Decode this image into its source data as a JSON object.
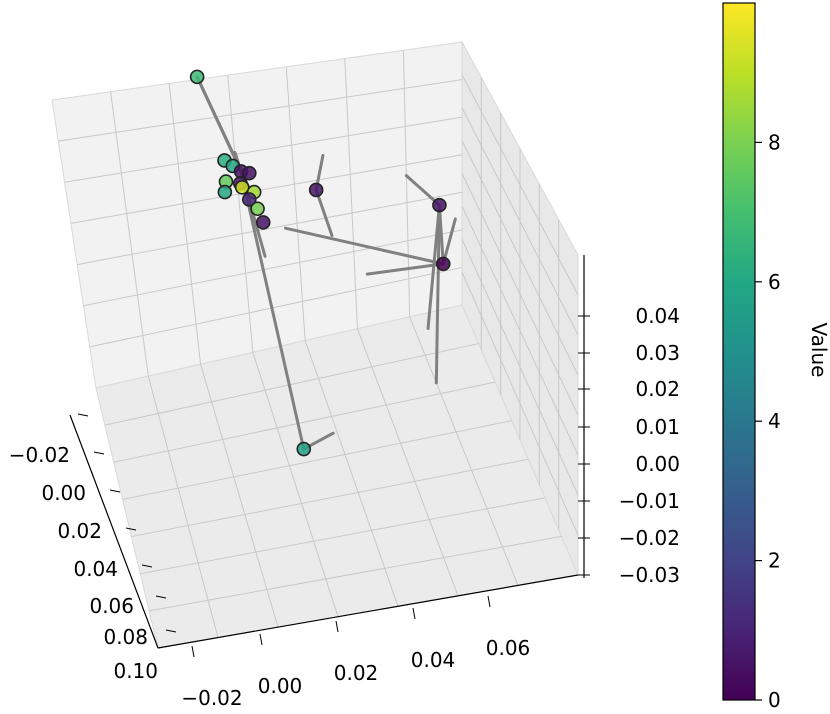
{
  "chart_data": {
    "type": "scatter",
    "projection": "3d",
    "title": "",
    "xlabel": "",
    "ylabel": "",
    "zlabel": "",
    "grid": true,
    "x_ticks": [
      "−0.02",
      "0.00",
      "0.02",
      "0.04",
      "0.06",
      "0.08",
      "0.10"
    ],
    "y_ticks": [
      "−0.02",
      "0.00",
      "0.02",
      "0.04",
      "0.06"
    ],
    "z_ticks": [
      "0.04",
      "0.03",
      "0.02",
      "0.01",
      "0.00",
      "−0.01",
      "−0.02",
      "−0.03"
    ],
    "xlim": [
      -0.03,
      0.1
    ],
    "ylim": [
      -0.03,
      0.08
    ],
    "zlim": [
      -0.035,
      0.05
    ],
    "colorbar": {
      "label": "Value",
      "colormap": "viridis",
      "range": [
        0,
        10
      ],
      "ticks": [
        "0",
        "2",
        "4",
        "6",
        "8"
      ]
    },
    "line_color": "#808080",
    "points": [
      {
        "x": -0.025,
        "y": -0.01,
        "z": 0.048,
        "value": 6.8
      },
      {
        "x": -0.012,
        "y": -0.004,
        "z": 0.03,
        "value": 6.3
      },
      {
        "x": -0.01,
        "y": -0.002,
        "z": 0.029,
        "value": 6.0
      },
      {
        "x": -0.008,
        "y": 0.0,
        "z": 0.028,
        "value": 0.4
      },
      {
        "x": -0.006,
        "y": 0.002,
        "z": 0.028,
        "value": 0.5
      },
      {
        "x": -0.008,
        "y": -0.004,
        "z": 0.026,
        "value": 7.6
      },
      {
        "x": -0.005,
        "y": 0.0,
        "z": 0.025,
        "value": 9.3
      },
      {
        "x": -0.003,
        "y": 0.003,
        "z": 0.024,
        "value": 8.6
      },
      {
        "x": -0.01,
        "y": 0.0,
        "z": 0.024,
        "value": 0.6
      },
      {
        "x": -0.011,
        "y": -0.004,
        "z": 0.022,
        "value": 6.0
      },
      {
        "x": -0.006,
        "y": 0.002,
        "z": 0.021,
        "value": 1.0
      },
      {
        "x": -0.004,
        "y": 0.004,
        "z": 0.019,
        "value": 7.9
      },
      {
        "x": -0.009,
        "y": 0.006,
        "z": 0.013,
        "value": 0.5
      },
      {
        "x": 0.012,
        "y": 0.018,
        "z": 0.028,
        "value": 0.6
      },
      {
        "x": 0.04,
        "y": 0.048,
        "z": 0.03,
        "value": 0.5
      },
      {
        "x": 0.03,
        "y": 0.05,
        "z": 0.01,
        "value": 0.0
      },
      {
        "x": 0.06,
        "y": 0.01,
        "z": -0.02,
        "value": 5.7
      }
    ],
    "segments": [
      [
        [
          -0.025,
          -0.01,
          0.048
        ],
        [
          -0.008,
          0.0,
          0.028
        ]
      ],
      [
        [
          -0.025,
          -0.01,
          0.048
        ],
        [
          -0.006,
          0.002,
          0.024
        ]
      ],
      [
        [
          -0.008,
          0.0,
          0.028
        ],
        [
          0.06,
          0.01,
          -0.02
        ]
      ],
      [
        [
          -0.008,
          0.0,
          0.028
        ],
        [
          -0.004,
          0.006,
          0.006
        ]
      ],
      [
        [
          -0.008,
          0.0,
          0.028
        ],
        [
          -0.004,
          -0.002,
          0.035
        ]
      ],
      [
        [
          0.06,
          0.01,
          -0.02
        ],
        [
          0.058,
          0.018,
          -0.018
        ]
      ],
      [
        [
          0.012,
          0.018,
          0.028
        ],
        [
          0.014,
          0.022,
          0.016
        ]
      ],
      [
        [
          0.012,
          0.018,
          0.028
        ],
        [
          0.01,
          0.02,
          0.036
        ]
      ],
      [
        [
          0.03,
          0.05,
          0.01
        ],
        [
          0.04,
          0.048,
          0.03
        ]
      ],
      [
        [
          0.03,
          0.05,
          0.01
        ],
        [
          -0.01,
          0.012,
          0.01
        ]
      ],
      [
        [
          0.03,
          0.05,
          0.01
        ],
        [
          0.022,
          0.054,
          0.018
        ]
      ],
      [
        [
          0.03,
          0.05,
          0.01
        ],
        [
          0.028,
          0.03,
          0.01
        ]
      ],
      [
        [
          0.04,
          0.048,
          0.03
        ],
        [
          0.032,
          0.04,
          0.036
        ]
      ],
      [
        [
          0.04,
          0.048,
          0.03
        ],
        [
          0.05,
          0.044,
          0.002
        ]
      ],
      [
        [
          0.04,
          0.048,
          0.03
        ],
        [
          0.052,
          0.046,
          -0.012
        ]
      ]
    ]
  }
}
